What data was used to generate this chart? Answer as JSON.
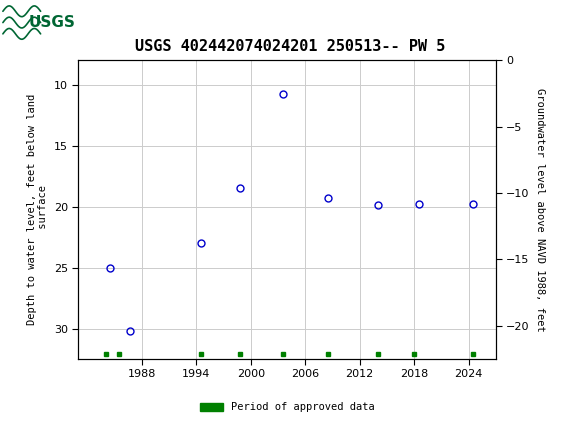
{
  "title": "USGS 402442074024201 250513-- PW 5",
  "ylabel_left": "Depth to water level, feet below land\n surface",
  "ylabel_right": "Groundwater level above NAVD 1988, feet",
  "data_x": [
    1984.5,
    1986.7,
    1994.5,
    1998.8,
    2003.5,
    2008.5,
    2014.0,
    2018.5,
    2024.5
  ],
  "data_y_depth": [
    25.0,
    30.2,
    23.0,
    18.5,
    10.8,
    19.3,
    19.9,
    19.8,
    19.8
  ],
  "marker_color": "#0000CC",
  "marker_size": 5,
  "marker_linewidth": 1.0,
  "approved_x": [
    1984.0,
    1985.5,
    1994.5,
    1998.8,
    2003.5,
    2008.5,
    2014.0,
    2018.0,
    2024.5
  ],
  "approved_color": "#008000",
  "xlim": [
    1981,
    2027
  ],
  "ylim_left": [
    32.5,
    8.0
  ],
  "ylim_right": [
    -22.5,
    0.0
  ],
  "yticks_left": [
    10,
    15,
    20,
    25,
    30
  ],
  "yticks_right": [
    0,
    -5,
    -10,
    -15,
    -20
  ],
  "xticks": [
    1988,
    1994,
    2000,
    2006,
    2012,
    2018,
    2024
  ],
  "grid_color": "#cccccc",
  "background_color": "#ffffff",
  "header_color": "#1a6b3a",
  "title_fontsize": 11,
  "axis_label_fontsize": 7.5,
  "tick_fontsize": 8,
  "legend_label": "Period of approved data",
  "legend_color": "#008000"
}
